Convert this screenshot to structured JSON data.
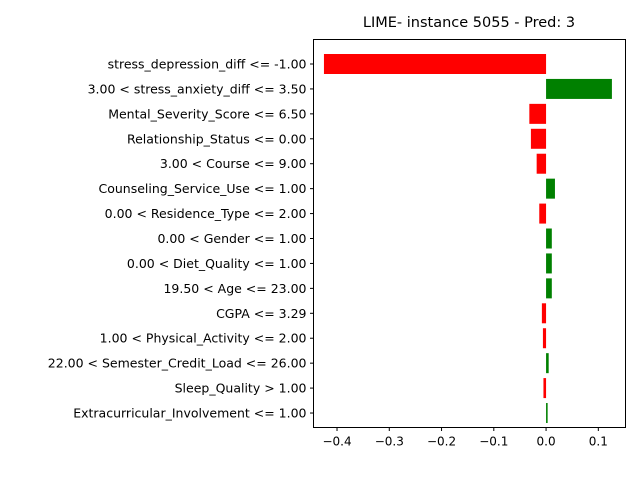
{
  "chart_data": {
    "type": "bar",
    "orientation": "horizontal",
    "title": "LIME- instance 5055 - Pred: 3",
    "xlabel": "",
    "ylabel": "",
    "xlim": [
      -0.445,
      0.152
    ],
    "xticks": [
      -0.4,
      -0.3,
      -0.2,
      -0.1,
      0.0,
      0.1
    ],
    "xtick_labels": [
      "−0.4",
      "−0.3",
      "−0.2",
      "−0.1",
      "0.0",
      "0.1"
    ],
    "grid": false,
    "positive_color": "#008000",
    "negative_color": "#ff0000",
    "categories": [
      "stress_depression_diff <= -1.00",
      "3.00 < stress_anxiety_diff <= 3.50",
      "Mental_Severity_Score <= 6.50",
      "Relationship_Status <= 0.00",
      "3.00 < Course <= 9.00",
      "Counseling_Service_Use <= 1.00",
      "0.00 < Residence_Type <= 2.00",
      "0.00 < Gender <= 1.00",
      "0.00 < Diet_Quality <= 1.00",
      "19.50 < Age <= 23.00",
      "CGPA <= 3.29",
      "1.00 < Physical_Activity <= 2.00",
      "22.00 < Semester_Credit_Load <= 26.00",
      "Sleep_Quality > 1.00",
      "Extracurricular_Involvement <= 1.00"
    ],
    "values": [
      -0.425,
      0.126,
      -0.032,
      -0.029,
      -0.018,
      0.017,
      -0.013,
      0.011,
      0.011,
      0.011,
      -0.008,
      -0.006,
      0.005,
      -0.005,
      0.003
    ]
  }
}
